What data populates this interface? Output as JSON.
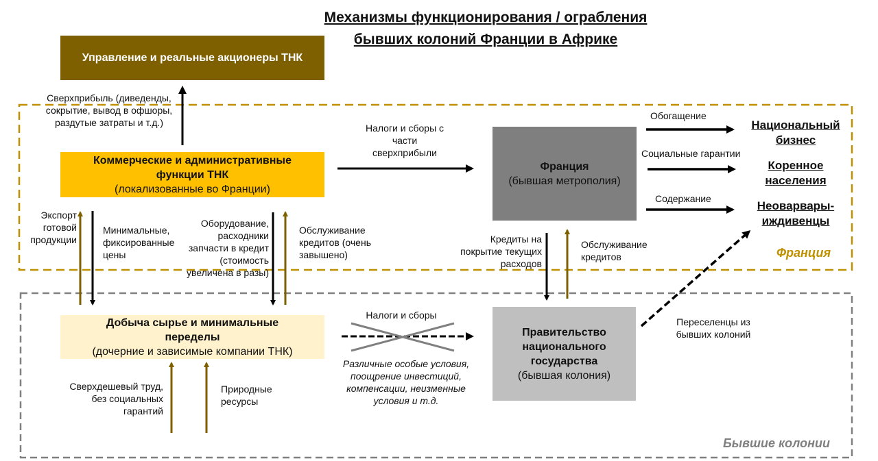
{
  "title": {
    "line1": "Механизмы функционирования / ограбления",
    "line2": "бывших колоний Франции в Африке"
  },
  "colors": {
    "management": "#7F6000",
    "commercial": "#FFC000",
    "extraction": "#FFF2CC",
    "france": "#7F7F7F",
    "government": "#BFBFBF",
    "france_border": "#BF9000",
    "colonies_border": "#808080",
    "gold_arrow": "#7F6000"
  },
  "boxes": {
    "management": {
      "title": "Управление и реальные акционеры ТНК"
    },
    "commercial": {
      "title": "Коммерческие и административные функции ТНК",
      "subtitle": "(локализованные во Франции)"
    },
    "extraction": {
      "title": "Добыча сырье и минимальные переделы",
      "subtitle": "(дочерние и зависимые компании ТНК)"
    },
    "france": {
      "title": "Франция",
      "subtitle": "(бывшая метрополия)"
    },
    "government": {
      "title": "Правительство национального государства",
      "subtitle": "(бывшая колония)"
    }
  },
  "regions": {
    "france": "Франция",
    "colonies": "Бывшие колонии"
  },
  "labels": {
    "superprofit": "Сверхприбыль (диведенды, сокрытие, вывод в офшоры, раздутые затраты и т.д.)",
    "taxes_superprofit": "Налоги и сборы с части сверхприбыли",
    "export": "Экспорт готовой продукции",
    "min_prices": "Минимальные, фиксированные цены",
    "equipment": "Оборудование, расходники запчасти в кредит (стоимость увеличена в разы)",
    "loan_service_high": "Обслуживание кредитов (очень завышено)",
    "enrichment": "Обогащение",
    "social": "Социальные гарантии",
    "maintenance": "Содержание",
    "credits": "Кредиты на покрытие текущих расходов",
    "loan_service": "Обслуживание кредитов",
    "taxes": "Налоги и сборы",
    "conditions": "Различные особые условия, поощрение инвестиций, компенсации, неизменные условия и т.д.",
    "settlers": "Переселенцы из бывших колоний",
    "cheap_labor": "Сверхдешевый труд, без социальных гарантий",
    "resources": "Природные ресурсы"
  },
  "destinations": [
    "Национальный бизнес",
    "Коренное населения",
    "Неоварвары-иждивенцы"
  ]
}
